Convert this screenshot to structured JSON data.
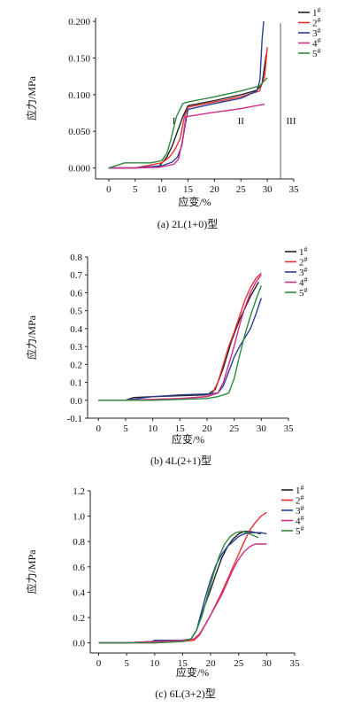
{
  "chart_data": [
    {
      "type": "line",
      "caption": "(a) 2L(1+0)型",
      "xlabel": "应变/%",
      "ylabel": "应力/MPa",
      "xlim": [
        -2.5,
        35
      ],
      "ylim": [
        -0.015,
        0.205
      ],
      "xticks": [
        "0",
        "5",
        "10",
        "15",
        "20",
        "25",
        "30",
        "35"
      ],
      "yticks": [
        "0.000",
        "0.050",
        "0.100",
        "0.150",
        "0.200"
      ],
      "regions": [
        "I",
        "II",
        "III"
      ],
      "region_divider_x": 32.5,
      "series": [
        {
          "name": "1#",
          "color": "#222222",
          "x": [
            0,
            5,
            9.5,
            11,
            12,
            13,
            14,
            15,
            20,
            25,
            28,
            29,
            29.8
          ],
          "y": [
            0,
            0,
            0.002,
            0.015,
            0.03,
            0.05,
            0.07,
            0.085,
            0.092,
            0.1,
            0.106,
            0.115,
            0.155
          ]
        },
        {
          "name": "2#",
          "color": "#e8302f",
          "x": [
            0,
            5,
            10,
            11.5,
            12.5,
            13.5,
            14.3,
            15,
            20,
            25,
            28.5,
            29.5,
            30
          ],
          "y": [
            0,
            0,
            0.007,
            0.015,
            0.025,
            0.04,
            0.07,
            0.083,
            0.09,
            0.097,
            0.105,
            0.125,
            0.165
          ]
        },
        {
          "name": "3#",
          "color": "#2a3f9a",
          "x": [
            0,
            5,
            10,
            12,
            13,
            13.8,
            14.5,
            15,
            20,
            25,
            28,
            28.6,
            29,
            29.3
          ],
          "y": [
            0,
            0,
            0.003,
            0.008,
            0.015,
            0.03,
            0.06,
            0.08,
            0.088,
            0.095,
            0.105,
            0.12,
            0.175,
            0.2
          ]
        },
        {
          "name": "4#",
          "color": "#d02c8a",
          "x": [
            0,
            5,
            9.5,
            11,
            12.3,
            13.2,
            14,
            14.6,
            20,
            25,
            29.5
          ],
          "y": [
            0,
            0,
            0.001,
            0.003,
            0.005,
            0.012,
            0.04,
            0.07,
            0.076,
            0.081,
            0.087
          ]
        },
        {
          "name": "5#",
          "color": "#2e8a3e",
          "x": [
            0,
            3,
            8,
            10,
            11,
            11.8,
            12.8,
            14,
            15,
            20,
            25,
            28.5,
            30
          ],
          "y": [
            0,
            0.007,
            0.007,
            0.01,
            0.02,
            0.04,
            0.07,
            0.088,
            0.09,
            0.097,
            0.105,
            0.112,
            0.123
          ]
        }
      ]
    },
    {
      "type": "line",
      "caption": "(b) 4L(2+1)型",
      "xlabel": "应变/%",
      "ylabel": "应力/MPa",
      "xlim": [
        -2,
        35
      ],
      "ylim": [
        -0.1,
        0.8
      ],
      "xticks": [
        "0",
        "5",
        "10",
        "15",
        "20",
        "25",
        "30",
        "35"
      ],
      "yticks": [
        "-0.1",
        "0.0",
        "0.1",
        "0.2",
        "0.3",
        "0.4",
        "0.5",
        "0.6",
        "0.7",
        "0.8"
      ],
      "series": [
        {
          "name": "1#",
          "color": "#222222",
          "x": [
            0,
            5,
            6.5,
            10,
            15,
            20,
            21.5,
            23,
            24.5,
            26,
            28,
            29.5
          ],
          "y": [
            0,
            0,
            0.015,
            0.02,
            0.025,
            0.03,
            0.06,
            0.18,
            0.33,
            0.45,
            0.58,
            0.66
          ]
        },
        {
          "name": "2#",
          "color": "#e8302f",
          "x": [
            0,
            5,
            10,
            15,
            20,
            21,
            22,
            23,
            24,
            25,
            26,
            27,
            28,
            29,
            30
          ],
          "y": [
            0,
            0,
            0.005,
            0.01,
            0.02,
            0.04,
            0.1,
            0.2,
            0.3,
            0.38,
            0.47,
            0.56,
            0.63,
            0.68,
            0.71
          ]
        },
        {
          "name": "3#",
          "color": "#2a3f9a",
          "x": [
            0,
            5,
            10,
            15,
            20,
            22,
            23,
            24,
            25,
            26,
            27,
            28,
            29,
            30
          ],
          "y": [
            0,
            0,
            0.02,
            0.03,
            0.035,
            0.04,
            0.08,
            0.16,
            0.24,
            0.3,
            0.35,
            0.4,
            0.48,
            0.57
          ]
        },
        {
          "name": "4#",
          "color": "#d02c8a",
          "x": [
            0,
            5,
            10,
            15,
            20,
            22,
            23,
            24,
            25,
            26,
            27,
            28,
            29,
            30
          ],
          "y": [
            0,
            0,
            0.005,
            0.01,
            0.02,
            0.04,
            0.1,
            0.2,
            0.3,
            0.42,
            0.52,
            0.6,
            0.66,
            0.7
          ]
        },
        {
          "name": "5#",
          "color": "#2e8a3e",
          "x": [
            0,
            5,
            10,
            15,
            20,
            22,
            24,
            25,
            26,
            27,
            28,
            29,
            30
          ],
          "y": [
            0,
            0,
            0,
            0.005,
            0.01,
            0.02,
            0.04,
            0.12,
            0.25,
            0.37,
            0.47,
            0.56,
            0.64
          ]
        }
      ]
    },
    {
      "type": "line",
      "caption": "(c) 6L(3+2)型",
      "xlabel": "应变/%",
      "ylabel": "应力/MPa",
      "xlim": [
        -1.5,
        35
      ],
      "ylim": [
        -0.08,
        1.2
      ],
      "xticks": [
        "0",
        "5",
        "10",
        "15",
        "20",
        "25",
        "30",
        "35"
      ],
      "yticks": [
        "0.0",
        "0.2",
        "0.4",
        "0.6",
        "0.8",
        "1.0",
        "1.2"
      ],
      "series": [
        {
          "name": "1#",
          "color": "#222222",
          "x": [
            0,
            5,
            10,
            15,
            16.5,
            17.5,
            19,
            20,
            21,
            22,
            23,
            24,
            25,
            26,
            27,
            28,
            29
          ],
          "y": [
            0,
            0,
            0.01,
            0.02,
            0.03,
            0.1,
            0.3,
            0.42,
            0.55,
            0.67,
            0.76,
            0.82,
            0.86,
            0.88,
            0.88,
            0.87,
            0.86
          ]
        },
        {
          "name": "2#",
          "color": "#e8302f",
          "x": [
            0,
            5,
            10,
            15,
            17,
            18,
            19,
            20,
            21,
            22,
            23,
            24,
            25,
            26,
            27,
            28,
            29,
            30
          ],
          "y": [
            0,
            0,
            0,
            0.01,
            0.02,
            0.06,
            0.14,
            0.22,
            0.31,
            0.4,
            0.5,
            0.6,
            0.7,
            0.8,
            0.89,
            0.95,
            1.0,
            1.03
          ]
        },
        {
          "name": "3#",
          "color": "#2a3f9a",
          "x": [
            0,
            5,
            9.5,
            10,
            15,
            16.5,
            17.5,
            19,
            20,
            21,
            22,
            23,
            24,
            25,
            26,
            27,
            28,
            29,
            30
          ],
          "y": [
            0,
            0,
            0.01,
            0.02,
            0.02,
            0.03,
            0.1,
            0.35,
            0.5,
            0.62,
            0.7,
            0.76,
            0.8,
            0.84,
            0.86,
            0.87,
            0.87,
            0.87,
            0.86
          ]
        },
        {
          "name": "4#",
          "color": "#d02c8a",
          "x": [
            0,
            5,
            10,
            15,
            17,
            18,
            19,
            20,
            21,
            22,
            23,
            24,
            25,
            26,
            27,
            28,
            29,
            30
          ],
          "y": [
            0,
            0,
            0.01,
            0.02,
            0.03,
            0.07,
            0.14,
            0.22,
            0.3,
            0.38,
            0.48,
            0.58,
            0.66,
            0.72,
            0.76,
            0.78,
            0.78,
            0.78
          ]
        },
        {
          "name": "5#",
          "color": "#2e8a3e",
          "x": [
            0,
            5,
            10,
            15,
            16.5,
            17.5,
            18.5,
            19.5,
            20.5,
            21.5,
            22.5,
            23.5,
            24.5,
            25.5,
            26.5,
            27.5,
            28.5
          ],
          "y": [
            0,
            0,
            0,
            0.01,
            0.03,
            0.1,
            0.22,
            0.38,
            0.54,
            0.68,
            0.78,
            0.84,
            0.87,
            0.88,
            0.87,
            0.85,
            0.83
          ]
        }
      ]
    }
  ]
}
